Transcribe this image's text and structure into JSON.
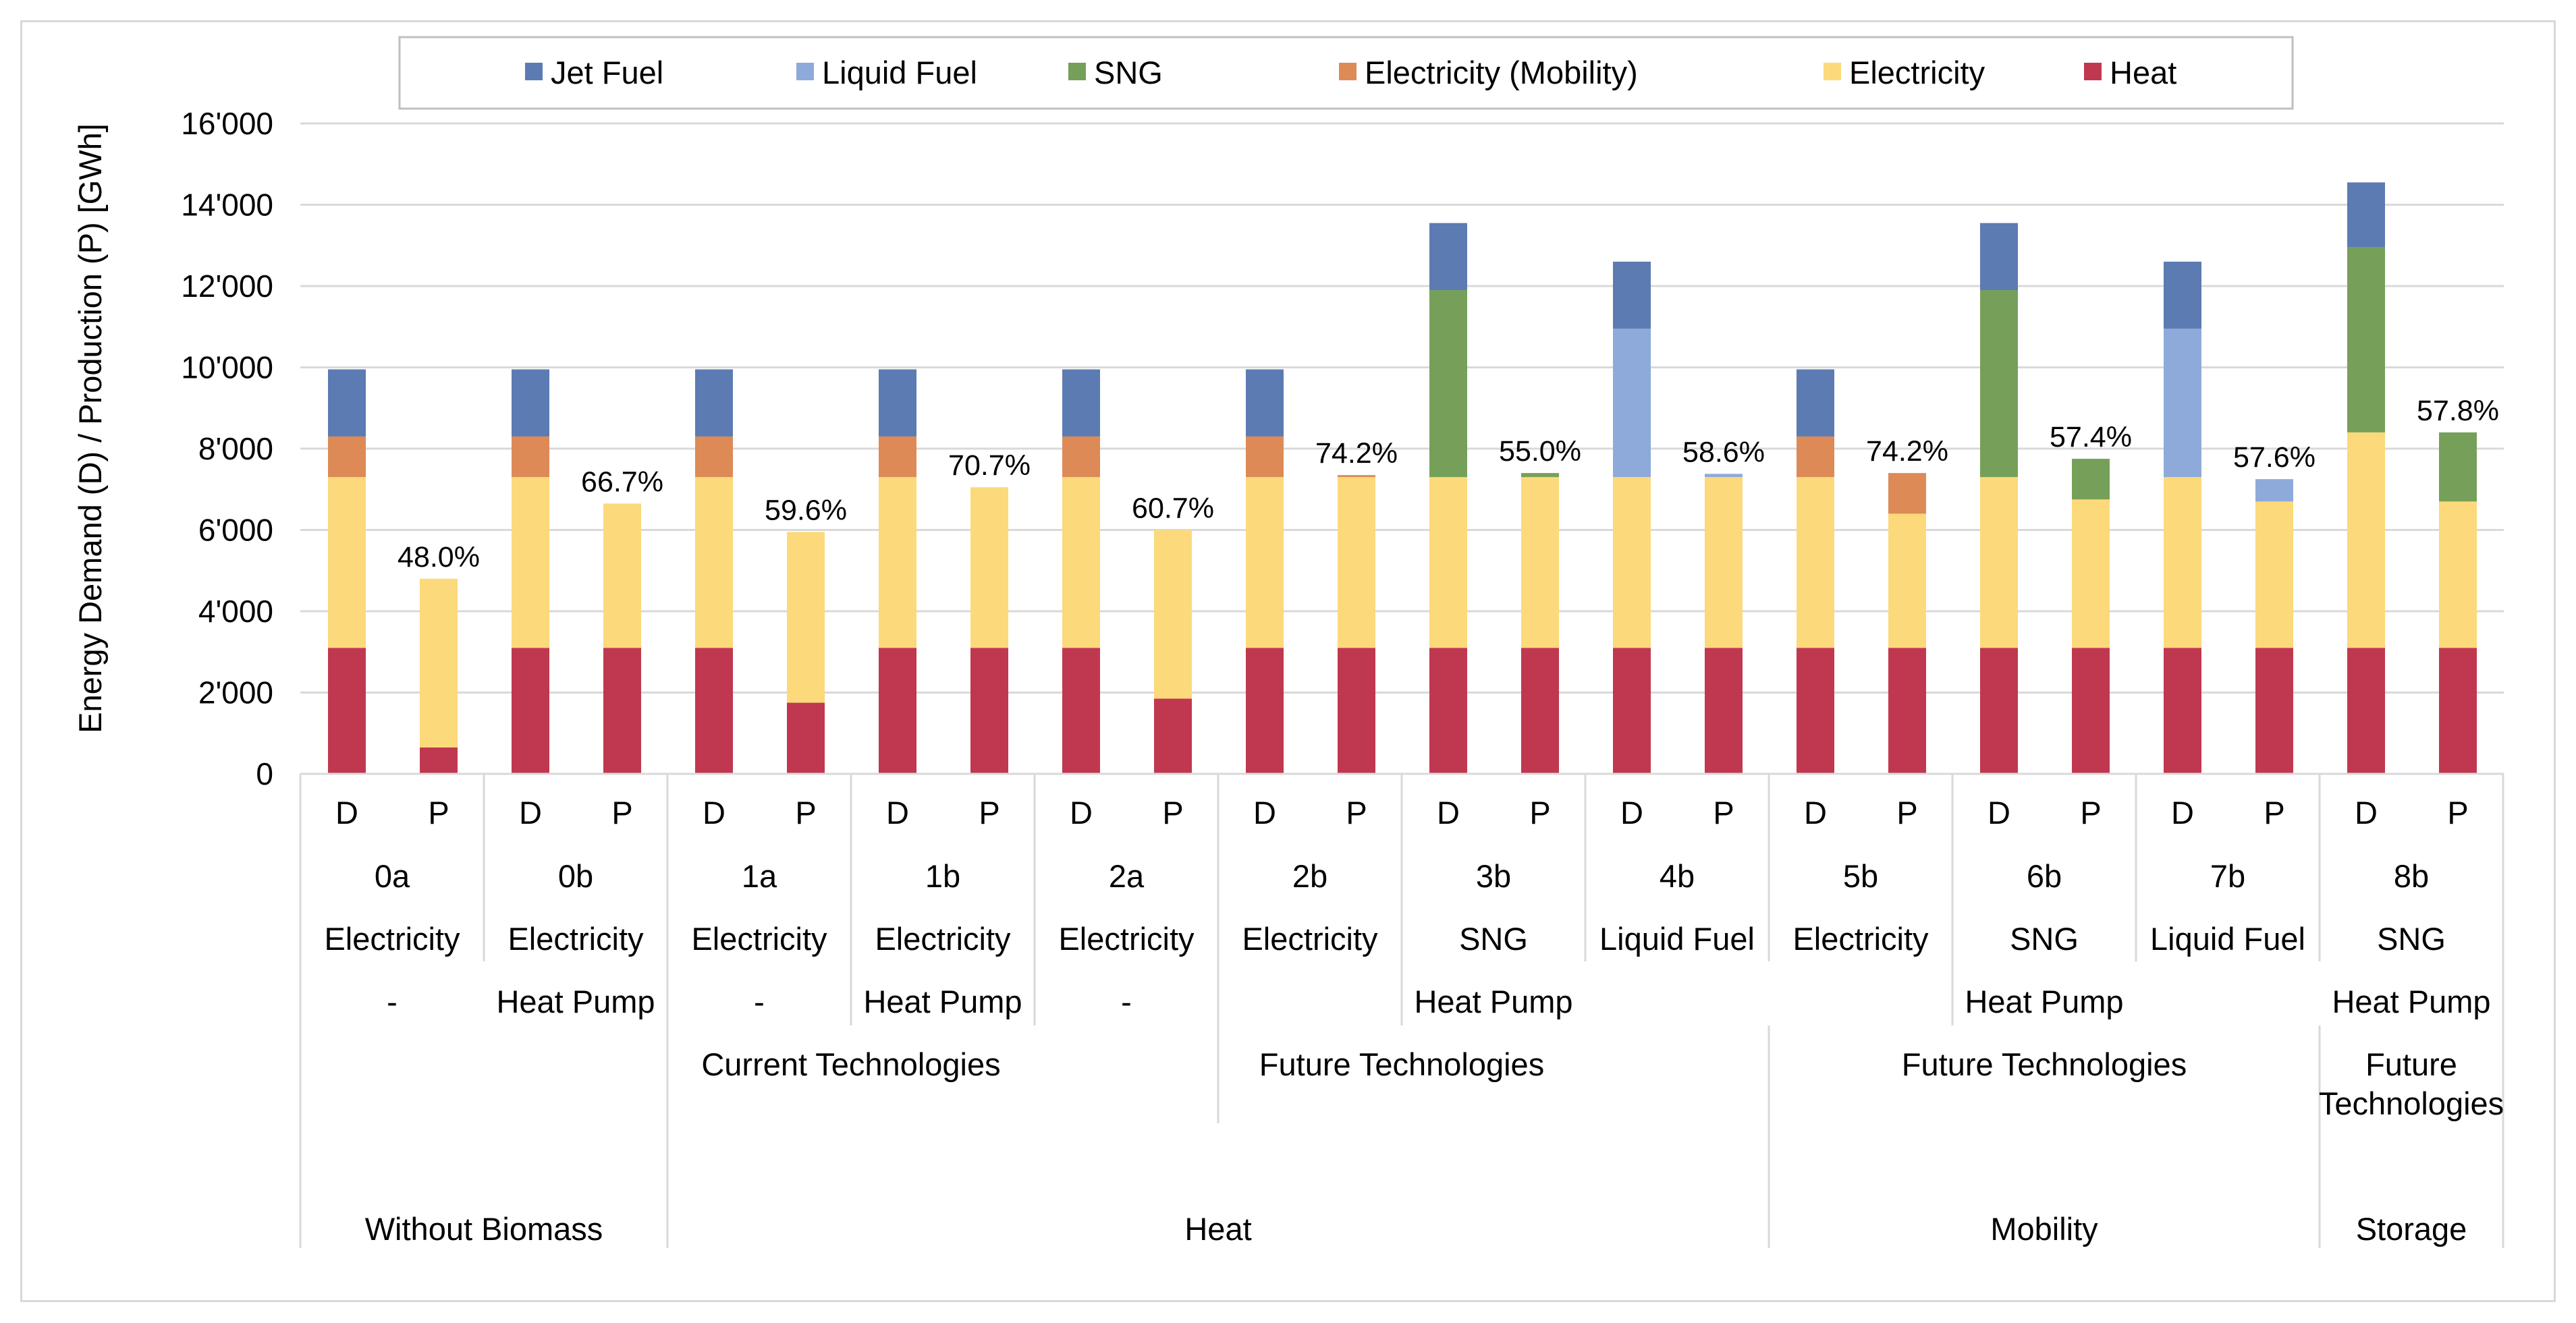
{
  "chart_data": {
    "type": "bar",
    "stacked": true,
    "ylabel": "Energy Demand (D) / Production (P) [GWh]",
    "ylim": [
      0,
      16000
    ],
    "y_ticks": [
      "0",
      "2'000",
      "4'000",
      "6'000",
      "8'000",
      "10'000",
      "12'000",
      "14'000",
      "16'000"
    ],
    "y_tick_values": [
      0,
      2000,
      4000,
      6000,
      8000,
      10000,
      12000,
      14000,
      16000
    ],
    "grid": true,
    "legend_position": "top",
    "series": [
      {
        "name": "Heat",
        "color": "#c0384f"
      },
      {
        "name": "Electricity",
        "color": "#fcd97a"
      },
      {
        "name": "Electricity (Mobility)",
        "color": "#dd8a57"
      },
      {
        "name": "SNG",
        "color": "#76a059"
      },
      {
        "name": "Liquid Fuel",
        "color": "#8eaadb"
      },
      {
        "name": "Jet Fuel",
        "color": "#5b7bb2"
      }
    ],
    "legend_order": [
      "Jet Fuel",
      "Liquid Fuel",
      "SNG",
      "Electricity (Mobility)",
      "Electricity",
      "Heat"
    ],
    "scenarios": [
      {
        "id": "0a",
        "fuel": "Electricity",
        "heat": "-",
        "D": [
          3100,
          4200,
          1000,
          0,
          0,
          1650
        ],
        "P": [
          650,
          4150,
          0,
          0,
          0,
          0
        ],
        "pct": "48.0%"
      },
      {
        "id": "0b",
        "fuel": "Electricity",
        "heat": "Heat Pump",
        "D": [
          3100,
          4200,
          1000,
          0,
          0,
          1650
        ],
        "P": [
          3100,
          3550,
          0,
          0,
          0,
          0
        ],
        "pct": "66.7%"
      },
      {
        "id": "1a",
        "fuel": "Electricity",
        "heat": "-",
        "D": [
          3100,
          4200,
          1000,
          0,
          0,
          1650
        ],
        "P": [
          1750,
          4200,
          0,
          0,
          0,
          0
        ],
        "pct": "59.6%"
      },
      {
        "id": "1b",
        "fuel": "Electricity",
        "heat": "Heat Pump",
        "D": [
          3100,
          4200,
          1000,
          0,
          0,
          1650
        ],
        "P": [
          3100,
          3950,
          0,
          0,
          0,
          0
        ],
        "pct": "70.7%"
      },
      {
        "id": "2a",
        "fuel": "Electricity",
        "heat": "-",
        "D": [
          3100,
          4200,
          1000,
          0,
          0,
          1650
        ],
        "P": [
          1850,
          4150,
          0,
          0,
          0,
          0
        ],
        "pct": "60.7%"
      },
      {
        "id": "2b",
        "fuel": "Electricity",
        "heat": "Heat Pump",
        "D": [
          3100,
          4200,
          1000,
          0,
          0,
          1650
        ],
        "P": [
          3100,
          4200,
          50,
          0,
          0,
          0
        ],
        "pct": "74.2%"
      },
      {
        "id": "3b",
        "fuel": "SNG",
        "heat": "Heat Pump",
        "D": [
          3100,
          4200,
          0,
          4600,
          0,
          1650
        ],
        "P": [
          3100,
          4200,
          0,
          100,
          0,
          0
        ],
        "pct": "55.0%"
      },
      {
        "id": "4b",
        "fuel": "Liquid Fuel",
        "heat": "Heat Pump",
        "D": [
          3100,
          4200,
          0,
          0,
          3650,
          1650
        ],
        "P": [
          3100,
          4200,
          0,
          0,
          80,
          0
        ],
        "pct": "58.6%"
      },
      {
        "id": "5b",
        "fuel": "Electricity",
        "heat": "Heat Pump",
        "D": [
          3100,
          4200,
          1000,
          0,
          0,
          1650
        ],
        "P": [
          3100,
          3300,
          1000,
          0,
          0,
          0
        ],
        "pct": "74.2%"
      },
      {
        "id": "6b",
        "fuel": "SNG",
        "heat": "Heat Pump",
        "D": [
          3100,
          4200,
          0,
          4600,
          0,
          1650
        ],
        "P": [
          3100,
          3650,
          0,
          1000,
          0,
          0
        ],
        "pct": "57.4%"
      },
      {
        "id": "7b",
        "fuel": "Liquid Fuel",
        "heat": "Heat Pump",
        "D": [
          3100,
          4200,
          0,
          0,
          3650,
          1650
        ],
        "P": [
          3100,
          3600,
          0,
          0,
          550,
          0
        ],
        "pct": "57.6%"
      },
      {
        "id": "8b",
        "fuel": "SNG",
        "heat": "Heat Pump",
        "D": [
          3100,
          5300,
          0,
          4550,
          0,
          1600
        ],
        "P": [
          3100,
          3600,
          0,
          1700,
          0,
          0
        ],
        "pct": "57.8%"
      }
    ],
    "bar_labels": [
      "D",
      "P"
    ],
    "level3_labels": [
      "-",
      "Heat Pump",
      "-",
      "Heat Pump",
      "-",
      "Heat Pump",
      "Heat Pump",
      "Heat Pump"
    ],
    "technology_labels": [
      "Current Technologies",
      "Future Technologies",
      "Future Technologies",
      "Future",
      "Technologies"
    ],
    "category_labels": [
      "Without Biomass",
      "Heat",
      "Mobility",
      "Storage"
    ]
  }
}
